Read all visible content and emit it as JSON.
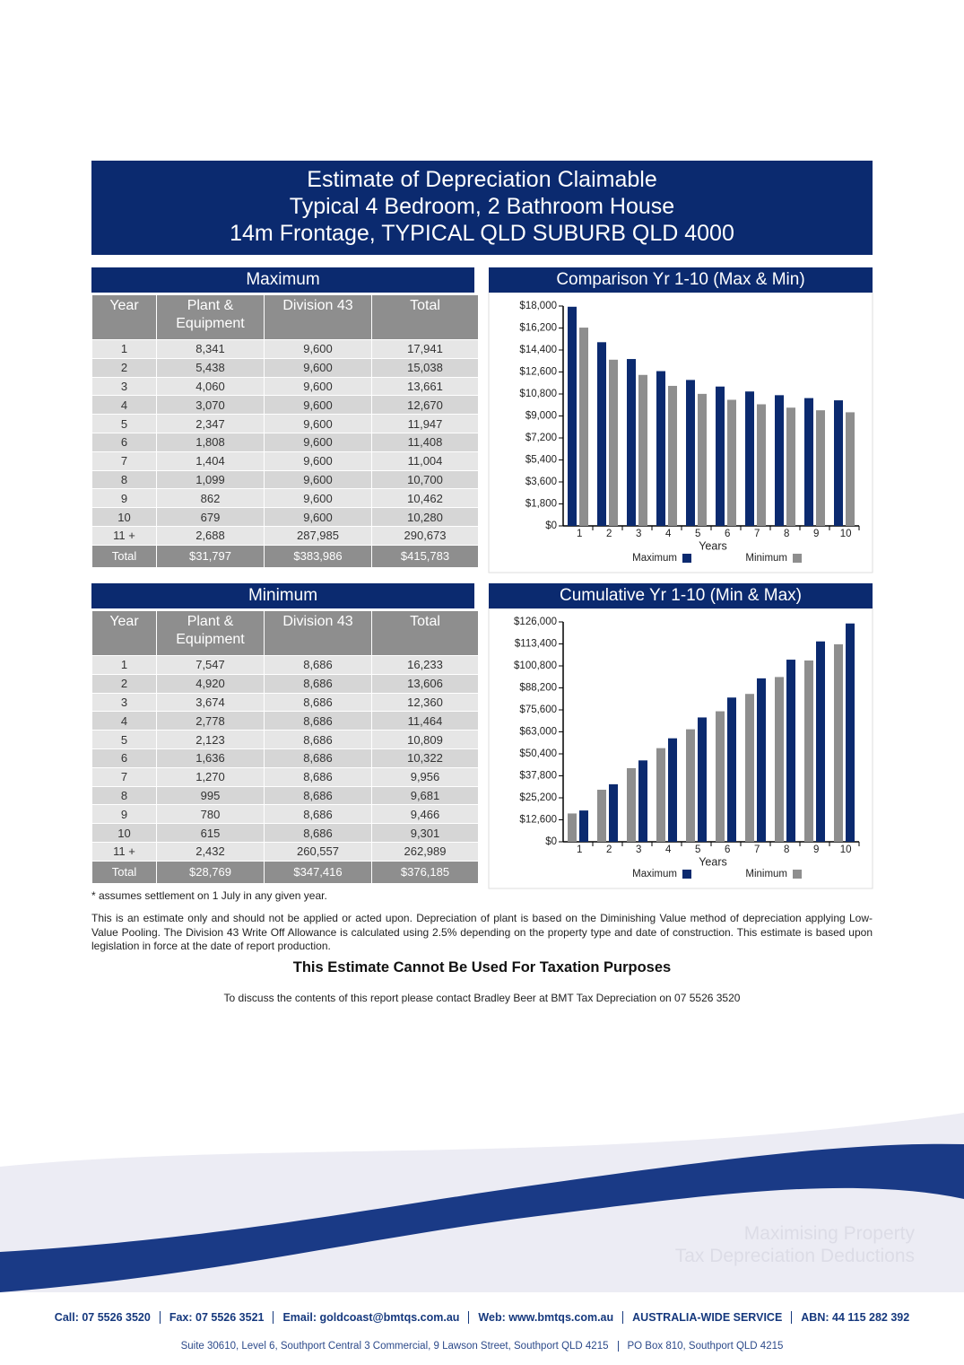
{
  "header": {
    "lines": [
      "Estimate of Depreciation Claimable",
      "Typical 4 Bedroom, 2 Bathroom House",
      "14m Frontage, TYPICAL QLD SUBURB QLD 4000"
    ]
  },
  "tables": [
    {
      "title": "Maximum",
      "columns": [
        "Year",
        "Plant & Equipment",
        "Division 43",
        "Total"
      ],
      "rows": [
        [
          "1",
          "8,341",
          "9,600",
          "17,941"
        ],
        [
          "2",
          "5,438",
          "9,600",
          "15,038"
        ],
        [
          "3",
          "4,060",
          "9,600",
          "13,661"
        ],
        [
          "4",
          "3,070",
          "9,600",
          "12,670"
        ],
        [
          "5",
          "2,347",
          "9,600",
          "11,947"
        ],
        [
          "6",
          "1,808",
          "9,600",
          "11,408"
        ],
        [
          "7",
          "1,404",
          "9,600",
          "11,004"
        ],
        [
          "8",
          "1,099",
          "9,600",
          "10,700"
        ],
        [
          "9",
          "862",
          "9,600",
          "10,462"
        ],
        [
          "10",
          "679",
          "9,600",
          "10,280"
        ],
        [
          "11 +",
          "2,688",
          "287,985",
          "290,673"
        ]
      ],
      "total": [
        "Total",
        "$31,797",
        "$383,986",
        "$415,783"
      ]
    },
    {
      "title": "Minimum",
      "columns": [
        "Year",
        "Plant & Equipment",
        "Division 43",
        "Total"
      ],
      "rows": [
        [
          "1",
          "7,547",
          "8,686",
          "16,233"
        ],
        [
          "2",
          "4,920",
          "8,686",
          "13,606"
        ],
        [
          "3",
          "3,674",
          "8,686",
          "12,360"
        ],
        [
          "4",
          "2,778",
          "8,686",
          "11,464"
        ],
        [
          "5",
          "2,123",
          "8,686",
          "10,809"
        ],
        [
          "6",
          "1,636",
          "8,686",
          "10,322"
        ],
        [
          "7",
          "1,270",
          "8,686",
          "9,956"
        ],
        [
          "8",
          "995",
          "8,686",
          "9,681"
        ],
        [
          "9",
          "780",
          "8,686",
          "9,466"
        ],
        [
          "10",
          "615",
          "8,686",
          "9,301"
        ],
        [
          "11 +",
          "2,432",
          "260,557",
          "262,989"
        ]
      ],
      "total": [
        "Total",
        "$28,769",
        "$347,416",
        "$376,185"
      ]
    }
  ],
  "chart_data": [
    {
      "type": "bar",
      "title": "Comparison Yr 1-10 (Max & Min)",
      "x_label": "Years",
      "categories": [
        "1",
        "2",
        "3",
        "4",
        "5",
        "6",
        "7",
        "8",
        "9",
        "10"
      ],
      "series": [
        {
          "name": "Maximum",
          "color": "#0b2a6f",
          "values": [
            17941,
            15038,
            13661,
            12670,
            11947,
            11408,
            11004,
            10700,
            10462,
            10280
          ]
        },
        {
          "name": "Minimum",
          "color": "#8e8e8e",
          "values": [
            16233,
            13606,
            12360,
            11464,
            10809,
            10322,
            9956,
            9681,
            9466,
            9301
          ]
        }
      ],
      "ylim": [
        0,
        18000
      ],
      "yticks": [
        {
          "value": 0,
          "label": "$0"
        },
        {
          "value": 1800,
          "label": "$1,800"
        },
        {
          "value": 3600,
          "label": "$3,600"
        },
        {
          "value": 5400,
          "label": "$5,400"
        },
        {
          "value": 7200,
          "label": "$7,200"
        },
        {
          "value": 9000,
          "label": "$9,000"
        },
        {
          "value": 10800,
          "label": "$10,800"
        },
        {
          "value": 12600,
          "label": "$12,600"
        },
        {
          "value": 14400,
          "label": "$14,400"
        },
        {
          "value": 16200,
          "label": "$16,200"
        },
        {
          "value": 18000,
          "label": "$18,000"
        }
      ],
      "legend": "bottom",
      "legend_reversed": false
    },
    {
      "type": "bar",
      "title": "Cumulative Yr 1-10 (Min & Max)",
      "x_label": "Years",
      "categories": [
        "1",
        "2",
        "3",
        "4",
        "5",
        "6",
        "7",
        "8",
        "9",
        "10"
      ],
      "series": [
        {
          "name": "Minimum",
          "color": "#8e8e8e",
          "values": [
            16233,
            29839,
            42199,
            53663,
            64472,
            74794,
            84750,
            94431,
            103897,
            113198
          ]
        },
        {
          "name": "Maximum",
          "color": "#0b2a6f",
          "values": [
            17941,
            32979,
            46640,
            59310,
            71257,
            82665,
            93669,
            104369,
            114831,
            125111
          ]
        }
      ],
      "ylim": [
        0,
        126000
      ],
      "yticks": [
        {
          "value": 0,
          "label": "$0"
        },
        {
          "value": 12600,
          "label": "$12,600"
        },
        {
          "value": 25200,
          "label": "$25,200"
        },
        {
          "value": 37800,
          "label": "$37,800"
        },
        {
          "value": 50400,
          "label": "$50,400"
        },
        {
          "value": 63000,
          "label": "$63,000"
        },
        {
          "value": 75600,
          "label": "$75,600"
        },
        {
          "value": 88200,
          "label": "$88,200"
        },
        {
          "value": 100800,
          "label": "$100,800"
        },
        {
          "value": 113400,
          "label": "$113,400"
        },
        {
          "value": 126000,
          "label": "$126,000"
        }
      ],
      "legend": "bottom",
      "legend_reversed": true
    }
  ],
  "footnote": "* assumes settlement on 1 July in any given year.",
  "disclaimer": "This is an estimate only and should not be applied or acted upon. Depreciation of plant is based on the Diminishing Value method of depreciation applying Low-Value Pooling. The Division 43 Write Off Allowance is calculated using 2.5% depending on the property type and date of construction. This estimate is based upon legislation in force at the date of report production.",
  "warning": "This Estimate Cannot Be Used For Taxation Purposes",
  "contact": "To discuss the contents of this report please contact Bradley Beer at BMT Tax Depreciation on 07 5526 3520",
  "tagline": [
    "Maximising Property",
    "Tax Depreciation Deductions"
  ],
  "footer": {
    "contact_items": [
      "Call: 07 5526 3520",
      "Fax: 07 5526 3521",
      "Email: goldcoast@bmtqs.com.au",
      "Web: www.bmtqs.com.au",
      "AUSTRALIA-WIDE SERVICE",
      "ABN: 44 115 282 392"
    ],
    "address_items": [
      "Suite 30610, Level 6, Southport Central 3 Commercial, 9 Lawson Street, Southport QLD 4215",
      "PO Box 810, Southport QLD 4215"
    ]
  }
}
